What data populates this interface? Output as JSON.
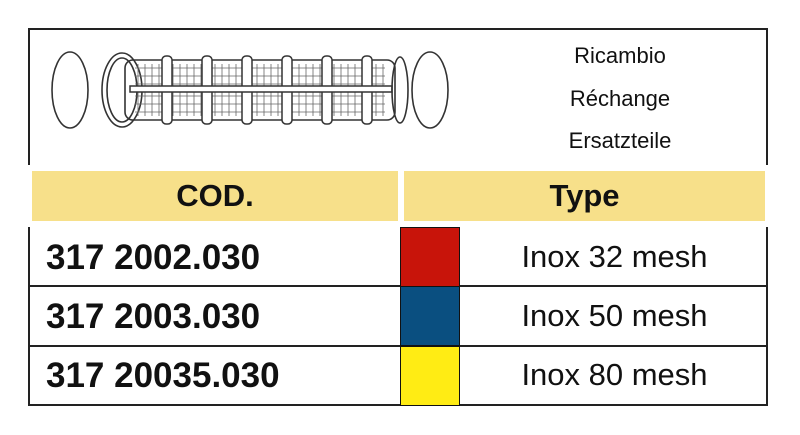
{
  "header": {
    "spare_parts": [
      "Ricambio",
      "Réchange",
      "Ersatzteile"
    ],
    "illustration_icon": "filter-cartridge-with-o-rings-icon"
  },
  "table": {
    "columns": [
      "COD.",
      "Type"
    ],
    "header_color": "#f7e08a",
    "rows": [
      {
        "code": "317 2002.030",
        "color": "#c8140a",
        "type": "Inox 32 mesh"
      },
      {
        "code": "317 2003.030",
        "color": "#0a4f80",
        "type": "Inox 50 mesh"
      },
      {
        "code": "317 20035.030",
        "color": "#ffec14",
        "type": "Inox 80 mesh"
      }
    ]
  }
}
